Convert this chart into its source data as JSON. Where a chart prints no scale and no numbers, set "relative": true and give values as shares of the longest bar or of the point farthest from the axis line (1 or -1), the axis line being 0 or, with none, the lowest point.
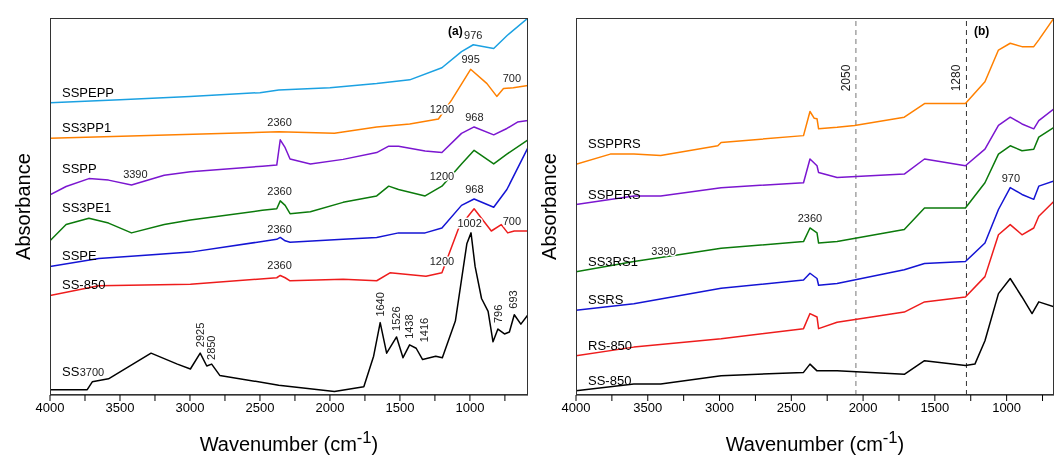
{
  "chart_data": [
    {
      "type": "line",
      "xlabel": "Wavenumber (cm$^{-1}$)",
      "ylabel": "Absorbance",
      "relative": true,
      "tick_labels": "x",
      "marker": "none",
      "line_style": "solid",
      "xlim": [
        4000,
        585
      ],
      "xticks": [
        4000,
        {
          "value": 3750,
          "label": null
        },
        3500,
        {
          "value": 3250,
          "label": null
        },
        3000,
        {
          "value": 2750,
          "label": null
        },
        2500,
        {
          "value": 2250,
          "label": null
        },
        2000,
        {
          "value": 1750,
          "label": null
        },
        1500,
        {
          "value": 1250,
          "label": null
        },
        1000,
        {
          "value": 750,
          "label": null
        }
      ],
      "series": [
        {
          "name": "SSPEPP",
          "color": "#1ba1e2",
          "x": [
            4000,
            3500,
            3000,
            2500,
            2366,
            2000,
            1666,
            1430,
            1200,
            1060,
            976,
            830,
            736,
            585
          ],
          "values": [
            0.775,
            0.783,
            0.792,
            0.802,
            0.809,
            0.815,
            0.826,
            0.836,
            0.868,
            0.911,
            0.929,
            0.919,
            0.953,
            1.0
          ]
        },
        {
          "name": "SS3PP1",
          "color": "#ff8000",
          "x": [
            4000,
            2366,
            1968,
            1666,
            1430,
            1225,
            1130,
            995,
            878,
            808,
            760,
            690,
            585
          ],
          "values": [
            0.681,
            0.698,
            0.694,
            0.711,
            0.719,
            0.732,
            0.783,
            0.864,
            0.826,
            0.792,
            0.813,
            0.815,
            0.821
          ]
        },
        {
          "name": "SSPP",
          "color": "#7b16d0",
          "x": [
            4000,
            3885,
            3722,
            3582,
            3418,
            3184,
            2997,
            2483,
            2380,
            2355,
            2320,
            2285,
            2140,
            1906,
            1666,
            1580,
            1510,
            1320,
            1200,
            1060,
            970,
            830,
            736,
            660,
            585
          ],
          "values": [
            0.531,
            0.553,
            0.574,
            0.57,
            0.557,
            0.583,
            0.592,
            0.607,
            0.61,
            0.677,
            0.656,
            0.626,
            0.613,
            0.625,
            0.643,
            0.66,
            0.66,
            0.647,
            0.643,
            0.694,
            0.711,
            0.69,
            0.707,
            0.724,
            0.728
          ]
        },
        {
          "name": "SS3PE1",
          "color": "#0b7a0b",
          "x": [
            4000,
            3885,
            3722,
            3582,
            3418,
            3184,
            2997,
            2483,
            2380,
            2355,
            2320,
            2285,
            2140,
            1906,
            1666,
            1580,
            1510,
            1320,
            1200,
            1060,
            970,
            830,
            736,
            585
          ],
          "values": [
            0.409,
            0.452,
            0.469,
            0.456,
            0.43,
            0.452,
            0.464,
            0.49,
            0.494,
            0.515,
            0.503,
            0.481,
            0.486,
            0.511,
            0.528,
            0.554,
            0.545,
            0.528,
            0.554,
            0.613,
            0.649,
            0.613,
            0.639,
            0.677
          ]
        },
        {
          "name": "SSPE",
          "color": "#1414d4",
          "x": [
            4000,
            3652,
            2997,
            2380,
            2355,
            2320,
            2285,
            1906,
            1666,
            1510,
            1320,
            1200,
            1060,
            970,
            830,
            736,
            585
          ],
          "values": [
            0.341,
            0.362,
            0.379,
            0.413,
            0.418,
            0.409,
            0.405,
            0.413,
            0.418,
            0.43,
            0.43,
            0.443,
            0.503,
            0.52,
            0.498,
            0.545,
            0.656
          ]
        },
        {
          "name": "SS-850",
          "color": "#ee1c1c",
          "x": [
            4000,
            3652,
            2997,
            2380,
            2355,
            2320,
            2285,
            1906,
            1666,
            1571,
            1314,
            1200,
            1080,
            970,
            847,
            776,
            730,
            683,
            585
          ],
          "values": [
            0.264,
            0.29,
            0.294,
            0.311,
            0.317,
            0.311,
            0.303,
            0.307,
            0.303,
            0.324,
            0.315,
            0.324,
            0.443,
            0.494,
            0.435,
            0.452,
            0.43,
            0.435,
            0.435
          ]
        },
        {
          "name": "SS",
          "color": "#000000",
          "x": [
            4000,
            3734,
            3698,
            3582,
            3278,
            3090,
            2997,
            2927,
            2880,
            2845,
            2787,
            2366,
            1968,
            1758,
            1688,
            1641,
            1595,
            1524,
            1478,
            1431,
            1384,
            1338,
            1244,
            1197,
            1104,
            1022,
            992,
            963,
            917,
            870,
            835,
            800,
            753,
            718,
            683,
            636,
            585
          ],
          "values": [
            0.014,
            0.014,
            0.035,
            0.043,
            0.111,
            0.082,
            0.069,
            0.111,
            0.077,
            0.082,
            0.052,
            0.026,
            0.009,
            0.022,
            0.103,
            0.192,
            0.111,
            0.154,
            0.099,
            0.133,
            0.124,
            0.094,
            0.103,
            0.099,
            0.196,
            0.401,
            0.43,
            0.341,
            0.256,
            0.222,
            0.141,
            0.175,
            0.162,
            0.167,
            0.213,
            0.188,
            0.213
          ]
        }
      ],
      "annotations": [
        "(a)",
        {
          "text": "976",
          "x": 976,
          "y": 0.929
        },
        {
          "text": "995",
          "x": 995,
          "y": 0.864
        },
        {
          "text": "700",
          "x": 700,
          "y": 0.815
        },
        {
          "text": "1200",
          "x": 1200,
          "y": 0.732
        },
        {
          "text": "2360",
          "x": 2360,
          "y": 0.698
        },
        {
          "text": "968",
          "x": 968,
          "y": 0.711
        },
        {
          "text": "3390",
          "x": 3390,
          "y": 0.56
        },
        {
          "text": "2360",
          "x": 2360,
          "y": 0.515
        },
        {
          "text": "1200",
          "x": 1200,
          "y": 0.554
        },
        {
          "text": "968",
          "x": 968,
          "y": 0.52
        },
        {
          "text": "2360",
          "x": 2360,
          "y": 0.413
        },
        {
          "text": "700",
          "x": 700,
          "y": 0.435
        },
        {
          "text": "1002",
          "x": 1002,
          "y": 0.43
        },
        {
          "text": "2360",
          "x": 2360,
          "y": 0.317
        },
        {
          "text": "1200",
          "x": 1200,
          "y": 0.33
        },
        {
          "text": "1640",
          "x": 1640,
          "y": 0.192
        },
        {
          "text": "1526",
          "x": 1526,
          "y": 0.154
        },
        {
          "text": "1438",
          "x": 1438,
          "y": 0.133
        },
        {
          "text": "1416",
          "x": 1416,
          "y": 0.124
        },
        {
          "text": "796",
          "x": 796,
          "y": 0.175
        },
        {
          "text": "693",
          "x": 693,
          "y": 0.213
        },
        {
          "text": "2925",
          "x": 2925,
          "y": 0.111
        },
        {
          "text": "2850",
          "x": 2850,
          "y": 0.077
        },
        {
          "text": "3700",
          "x": 3700,
          "y": 0.035
        }
      ]
    },
    {
      "type": "line",
      "xlabel": "Wavenumber (cm$^{-1}$)",
      "ylabel": "Absorbance",
      "relative": true,
      "tick_labels": "x",
      "marker": "none",
      "line_style": "solid",
      "xlim": [
        4000,
        670
      ],
      "xticks": [
        4000,
        {
          "value": 3750,
          "label": null
        },
        3500,
        {
          "value": 3250,
          "label": null
        },
        3000,
        {
          "value": 2750,
          "label": null
        },
        2500,
        {
          "value": 2250,
          "label": null
        },
        2000,
        {
          "value": 1750,
          "label": null
        },
        1500,
        {
          "value": 1250,
          "label": null
        },
        1000,
        {
          "value": 750,
          "label": null
        }
      ],
      "series": [
        {
          "name": "SSPPRS",
          "color": "#ff8000",
          "x": [
            4000,
            3761,
            3597,
            3410,
            3012,
            2989,
            2415,
            2370,
            2340,
            2321,
            2310,
            2181,
            2059,
            1713,
            1572,
            1287,
            1151,
            1057,
            975,
            893,
            811,
            776,
            670
          ],
          "values": [
            0.612,
            0.639,
            0.639,
            0.635,
            0.661,
            0.67,
            0.688,
            0.752,
            0.734,
            0.733,
            0.706,
            0.71,
            0.715,
            0.737,
            0.773,
            0.773,
            0.831,
            0.915,
            0.933,
            0.924,
            0.924,
            0.942,
            1.0
          ]
        },
        {
          "name": "SSPERS",
          "color": "#7b16d0",
          "x": [
            4000,
            3597,
            3410,
            2989,
            2415,
            2370,
            2321,
            2310,
            2181,
            1713,
            1572,
            1287,
            1151,
            1057,
            975,
            893,
            811,
            776,
            670
          ],
          "values": [
            0.505,
            0.528,
            0.528,
            0.55,
            0.563,
            0.626,
            0.608,
            0.59,
            0.577,
            0.586,
            0.626,
            0.608,
            0.652,
            0.715,
            0.737,
            0.719,
            0.706,
            0.728,
            0.759
          ]
        },
        {
          "name": "SS3RS1",
          "color": "#0b7a0b",
          "x": [
            4000,
            3597,
            2989,
            2415,
            2370,
            2321,
            2310,
            2181,
            1713,
            1572,
            1287,
            1151,
            1057,
            975,
            893,
            811,
            776,
            670
          ],
          "values": [
            0.327,
            0.354,
            0.389,
            0.407,
            0.443,
            0.43,
            0.403,
            0.407,
            0.439,
            0.496,
            0.496,
            0.563,
            0.639,
            0.661,
            0.648,
            0.652,
            0.684,
            0.71
          ]
        },
        {
          "name": "SSRS",
          "color": "#1414d4",
          "x": [
            4000,
            3597,
            2989,
            2415,
            2370,
            2321,
            2310,
            2181,
            1713,
            1572,
            1287,
            1151,
            1057,
            975,
            893,
            811,
            776,
            670
          ],
          "values": [
            0.225,
            0.242,
            0.283,
            0.305,
            0.323,
            0.309,
            0.291,
            0.296,
            0.332,
            0.349,
            0.354,
            0.403,
            0.492,
            0.55,
            0.532,
            0.519,
            0.554,
            0.568
          ]
        },
        {
          "name": "RS-850",
          "color": "#ee1c1c",
          "x": [
            4000,
            3597,
            2989,
            2415,
            2370,
            2321,
            2310,
            2181,
            1713,
            1572,
            1287,
            1151,
            1057,
            975,
            893,
            811,
            776,
            670
          ],
          "values": [
            0.104,
            0.127,
            0.149,
            0.176,
            0.216,
            0.207,
            0.176,
            0.193,
            0.22,
            0.247,
            0.26,
            0.314,
            0.425,
            0.452,
            0.425,
            0.443,
            0.474,
            0.514
          ]
        },
        {
          "name": "SS-850",
          "color": "#000000",
          "x": [
            4000,
            3597,
            3410,
            2989,
            2415,
            2370,
            2321,
            2181,
            1713,
            1572,
            1287,
            1221,
            1151,
            1057,
            975,
            893,
            823,
            776,
            670
          ],
          "values": [
            0.011,
            0.029,
            0.029,
            0.051,
            0.06,
            0.082,
            0.064,
            0.064,
            0.055,
            0.091,
            0.078,
            0.082,
            0.144,
            0.269,
            0.309,
            0.26,
            0.216,
            0.247,
            0.234
          ]
        }
      ],
      "ref_lines": [
        {
          "axis": "x",
          "value": 2050,
          "label": "2050",
          "color": "#777777",
          "line_style": "dashed"
        },
        {
          "axis": "x",
          "value": 1280,
          "label": "1280",
          "color": "#333333",
          "line_style": "dashed"
        }
      ],
      "annotations": [
        "(b)",
        {
          "text": "2360",
          "x": 2370,
          "y": 0.443
        },
        {
          "text": "3390",
          "x": 3390,
          "y": 0.355
        },
        {
          "text": "970",
          "x": 970,
          "y": 0.55
        }
      ]
    }
  ]
}
